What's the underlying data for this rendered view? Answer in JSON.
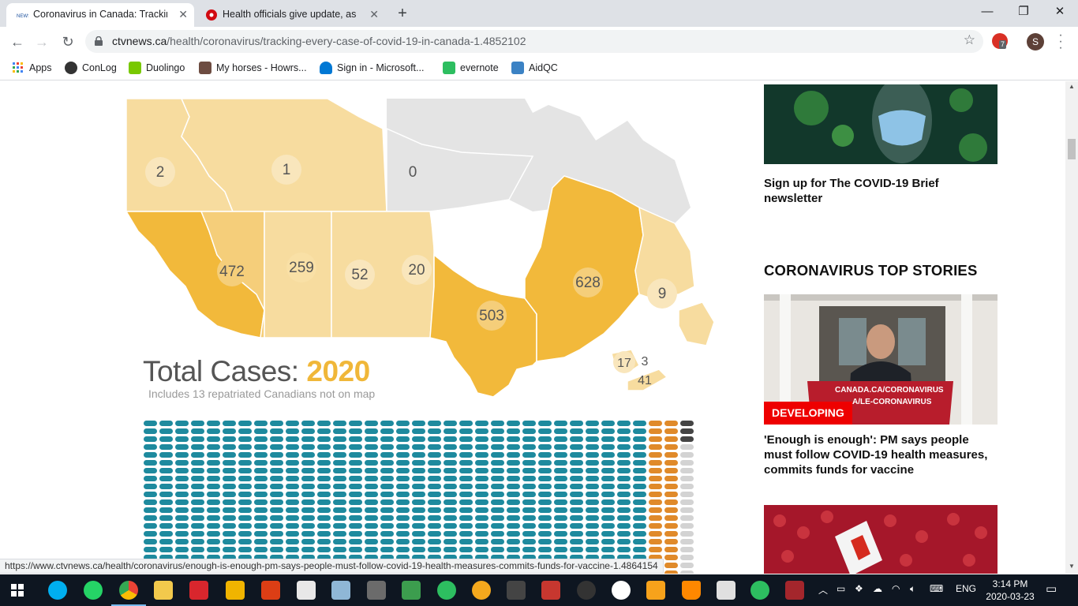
{
  "browser": {
    "tabs": [
      {
        "label": "Coronavirus in Canada: Tracking e",
        "active": true,
        "favicon": "ctvnews-favicon"
      },
      {
        "label": "Health officials give update, as O",
        "active": false,
        "favicon": "cbc-favicon"
      }
    ],
    "new_tab": "+",
    "window_controls": {
      "minimize": "—",
      "maximize": "❐",
      "close": "✕"
    },
    "url_host": "ctvnews.ca",
    "url_path": "/health/coronavirus/tracking-every-case-of-covid-19-in-canada-1.4852102",
    "extension_badge": "7",
    "profile_initial": "S",
    "bookmarks": [
      {
        "label": "Apps",
        "icon": "apps-grid-icon",
        "color": "#4285f4"
      },
      {
        "label": "ConLog",
        "icon": "conlog-icon",
        "color": "#333333"
      },
      {
        "label": "Duolingo",
        "icon": "duolingo-icon",
        "color": "#78c800"
      },
      {
        "label": "My horses - Howrs...",
        "icon": "horse-icon",
        "color": "#6d4c41"
      },
      {
        "label": "Sign in - Microsoft...",
        "icon": "onedrive-icon",
        "color": "#0078d4"
      },
      {
        "label": "evernote",
        "icon": "evernote-icon",
        "color": "#2dbe60"
      },
      {
        "label": "AidQC",
        "icon": "aidqc-icon",
        "color": "#3b82c4"
      }
    ]
  },
  "map": {
    "provinces": [
      {
        "name": "yukon",
        "cases": "2"
      },
      {
        "name": "northwest-territories",
        "cases": "1"
      },
      {
        "name": "nunavut",
        "cases": "0"
      },
      {
        "name": "british-columbia",
        "cases": "472"
      },
      {
        "name": "alberta",
        "cases": "259"
      },
      {
        "name": "saskatchewan",
        "cases": "52"
      },
      {
        "name": "manitoba",
        "cases": "20"
      },
      {
        "name": "ontario",
        "cases": "503"
      },
      {
        "name": "quebec",
        "cases": "628"
      },
      {
        "name": "newfoundland-labrador",
        "cases": "9"
      },
      {
        "name": "new-brunswick",
        "cases": "17"
      },
      {
        "name": "pei",
        "cases": "3"
      },
      {
        "name": "nova-scotia",
        "cases": "41"
      }
    ],
    "total_label": "Total Cases:",
    "total_value": "2020",
    "note": "Includes 13 repatriated Canadians not on map",
    "colors": {
      "light": "#f7dc9f",
      "mid": "#f5ce7a",
      "dark": "#f2b93b",
      "grey": "#e4e4e4",
      "pill_teal": "#1e8a9e",
      "pill_orange": "#e08a2a",
      "pill_dark": "#444444",
      "pill_grey": "#d3d3d3"
    }
  },
  "sidebar": {
    "newsletter_title": "Sign up for The COVID-19 Brief newsletter",
    "section_title": "CORONAVIRUS TOP STORIES",
    "story_badge": "DEVELOPING",
    "story_image_text_1": "CANADA.CA/CORONAVIRUS",
    "story_image_text_2": "A/LE-CORONAVIRUS",
    "story_title": "'Enough is enough': PM says people must follow COVID-19 health measures, commits funds for vaccine"
  },
  "status_url": "https://www.ctvnews.ca/health/coronavirus/enough-is-enough-pm-says-people-must-follow-covid-19-health-measures-commits-funds-for-vaccine-1.4864154",
  "taskbar": {
    "language": "ENG",
    "time": "3:14 PM",
    "date": "2020-03-23"
  }
}
